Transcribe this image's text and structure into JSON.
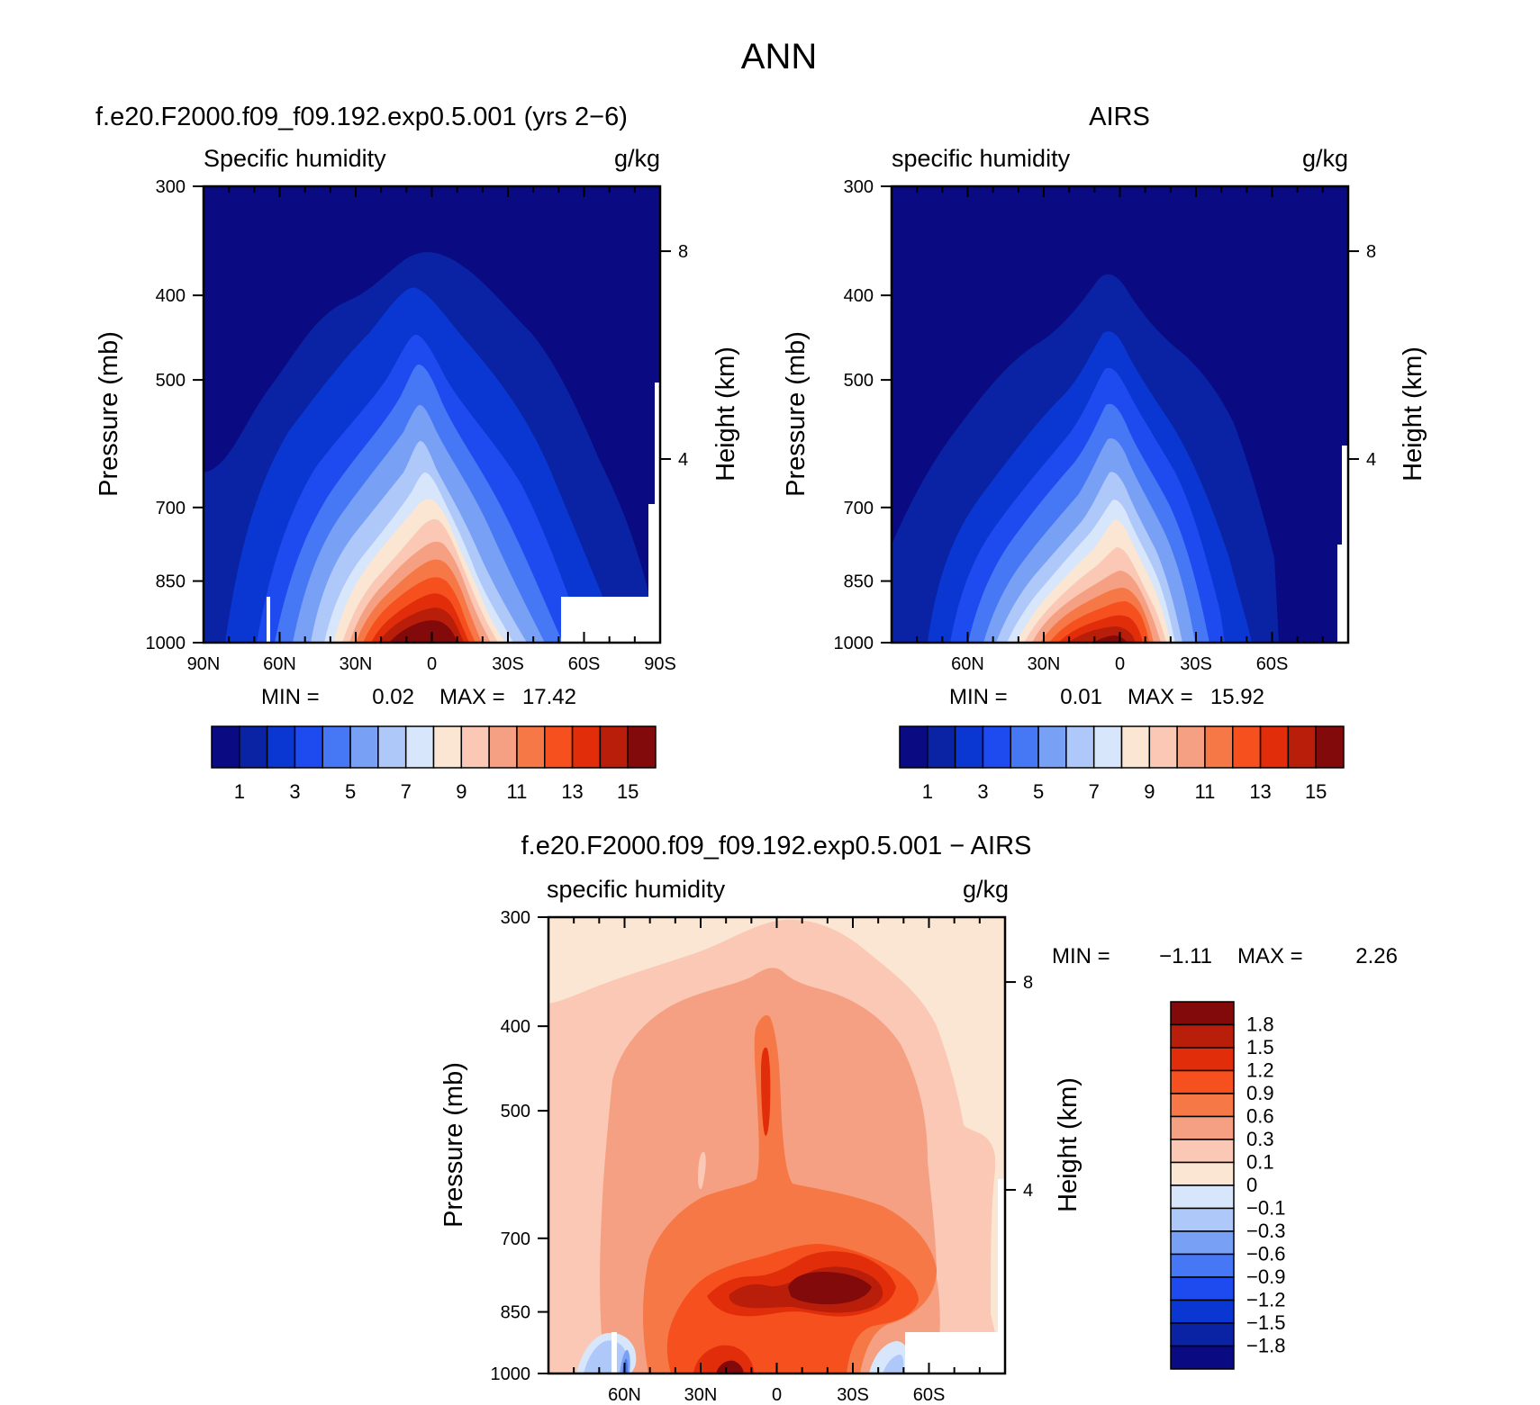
{
  "page_title": "ANN",
  "chart_data": [
    {
      "type": "heatmap",
      "title": "f.e20.F2000.f09_f09.192.exp0.5.001 (yrs 2−6)",
      "subtitle_left": "Specific humidity",
      "subtitle_right": "g/kg",
      "ylabel": "Pressure (mb)",
      "ylabel2": "Height (km)",
      "yticks": [
        300,
        400,
        500,
        700,
        850,
        1000
      ],
      "y2ticks": [
        "8",
        "4"
      ],
      "xticks": [
        "90N",
        "60N",
        "30N",
        "0",
        "30S",
        "60S",
        "90S"
      ],
      "xlim": [
        "90N",
        "90S"
      ],
      "ylim": [
        1000,
        300
      ],
      "stats": {
        "min_label": "MIN =",
        "min": "0.02",
        "max_label": "MAX =",
        "max": "17.42"
      },
      "colorbar": {
        "levels": [
          1,
          2,
          3,
          4,
          5,
          6,
          7,
          8,
          9,
          10,
          11,
          12,
          13,
          14,
          15
        ],
        "tick_labels": [
          "1",
          "3",
          "5",
          "7",
          "9",
          "11",
          "13",
          "15"
        ],
        "colors": [
          "#0a0a82",
          "#0a23a5",
          "#0a37d2",
          "#1e4bf0",
          "#4678f5",
          "#78a0f5",
          "#afc8fa",
          "#d7e6fa",
          "#fae6d2",
          "#fac8b4",
          "#f5a082",
          "#f57846",
          "#f5501e",
          "#e12d0a",
          "#b91e0a",
          "#820a0a"
        ]
      },
      "field": {
        "description": "annual zonal mean specific humidity, peak ~17 g/kg near the surface at the equator"
      }
    },
    {
      "type": "heatmap",
      "title": "AIRS",
      "subtitle_left": "specific humidity",
      "subtitle_right": "g/kg",
      "ylabel": "Pressure (mb)",
      "ylabel2": "Height (km)",
      "yticks": [
        300,
        400,
        500,
        700,
        850,
        1000
      ],
      "y2ticks": [
        "8",
        "4"
      ],
      "xticks": [
        "60N",
        "30N",
        "0",
        "30S",
        "60S"
      ],
      "stats": {
        "min_label": "MIN =",
        "min": "0.01",
        "max_label": "MAX =",
        "max": "15.92"
      },
      "colorbar": {
        "levels": [
          1,
          2,
          3,
          4,
          5,
          6,
          7,
          8,
          9,
          10,
          11,
          12,
          13,
          14,
          15
        ],
        "tick_labels": [
          "1",
          "3",
          "5",
          "7",
          "9",
          "11",
          "13",
          "15"
        ],
        "colors": [
          "#0a0a82",
          "#0a23a5",
          "#0a37d2",
          "#1e4bf0",
          "#4678f5",
          "#78a0f5",
          "#afc8fa",
          "#d7e6fa",
          "#fae6d2",
          "#fac8b4",
          "#f5a082",
          "#f57846",
          "#f5501e",
          "#e12d0a",
          "#b91e0a",
          "#820a0a"
        ]
      }
    },
    {
      "type": "heatmap",
      "title": "f.e20.F2000.f09_f09.192.exp0.5.001 − AIRS",
      "subtitle_left": "specific humidity",
      "subtitle_right": "g/kg",
      "ylabel": "Pressure (mb)",
      "ylabel2": "Height (km)",
      "yticks": [
        300,
        400,
        500,
        700,
        850,
        1000
      ],
      "y2ticks": [
        "8",
        "4"
      ],
      "xticks": [
        "60N",
        "30N",
        "0",
        "30S",
        "60S"
      ],
      "stats": {
        "min_label": "MIN =",
        "min": "−1.11",
        "max_label": "MAX =",
        "max": "2.26"
      },
      "colorbar": {
        "levels": [
          -1.8,
          -1.5,
          -1.2,
          -0.9,
          -0.6,
          -0.3,
          -0.1,
          0,
          0.1,
          0.3,
          0.6,
          0.9,
          1.2,
          1.5,
          1.8
        ],
        "tick_labels": [
          "1.8",
          "1.5",
          "1.2",
          "0.9",
          "0.6",
          "0.3",
          "0.1",
          "0",
          "−0.1",
          "−0.3",
          "−0.6",
          "−0.9",
          "−1.2",
          "−1.5",
          "−1.8"
        ],
        "colors": [
          "#820a0a",
          "#b91e0a",
          "#e12d0a",
          "#f5501e",
          "#f57846",
          "#f5a082",
          "#fac8b4",
          "#fae6d2",
          "#d7e6fa",
          "#afc8fa",
          "#78a0f5",
          "#4678f5",
          "#1e4bf0",
          "#0a37d2",
          "#0a23a5",
          "#0a0a82"
        ]
      }
    }
  ]
}
